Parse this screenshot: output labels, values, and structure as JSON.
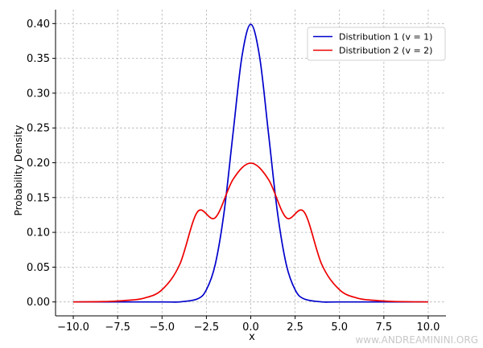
{
  "chart_data": {
    "type": "line",
    "xlabel": "x",
    "ylabel": "Probability Density",
    "xlim": [
      -11,
      11
    ],
    "ylim": [
      -0.02,
      0.42
    ],
    "xticks": [
      -10,
      -7.5,
      -5,
      -2.5,
      0,
      2.5,
      5,
      7.5,
      10
    ],
    "xtick_labels": [
      "−10.0",
      "−7.5",
      "−5.0",
      "−2.5",
      "0.0",
      "2.5",
      "5.0",
      "7.5",
      "10.0"
    ],
    "yticks": [
      0,
      0.05,
      0.1,
      0.15,
      0.2,
      0.25,
      0.3,
      0.35,
      0.4
    ],
    "ytick_labels": [
      "0.00",
      "0.05",
      "0.10",
      "0.15",
      "0.20",
      "0.25",
      "0.30",
      "0.35",
      "0.40"
    ],
    "grid": true,
    "legend_position": "top-right",
    "series": [
      {
        "name": "Distribution  1 (v = 1)",
        "color": "#0000cc",
        "x": [
          -10,
          -5,
          -4,
          -3,
          -2.5,
          -2,
          -1.5,
          -1,
          -0.5,
          0,
          0.5,
          1,
          1.5,
          2,
          2.5,
          3,
          4,
          5,
          10
        ],
        "y": [
          0.0,
          0.0,
          0.0001,
          0.0044,
          0.0175,
          0.054,
          0.1295,
          0.242,
          0.3521,
          0.3989,
          0.3521,
          0.242,
          0.1295,
          0.054,
          0.0175,
          0.0044,
          0.0001,
          0.0,
          0.0
        ]
      },
      {
        "name": "Distribution  2 (v = 2)",
        "color": "#ee0000",
        "x": [
          -10,
          -8,
          -7,
          -6,
          -5,
          -4,
          -3,
          -2,
          -1,
          0,
          1,
          2,
          3,
          4,
          5,
          6,
          7,
          8,
          10
        ],
        "y": [
          0.0,
          0.0007,
          0.0022,
          0.0055,
          0.0175,
          0.054,
          0.1295,
          0.121,
          0.176,
          0.1995,
          0.176,
          0.121,
          0.1295,
          0.054,
          0.0175,
          0.0055,
          0.0022,
          0.0007,
          0.0
        ]
      }
    ]
  },
  "watermark": "www.ANDREAMININI.ORG"
}
